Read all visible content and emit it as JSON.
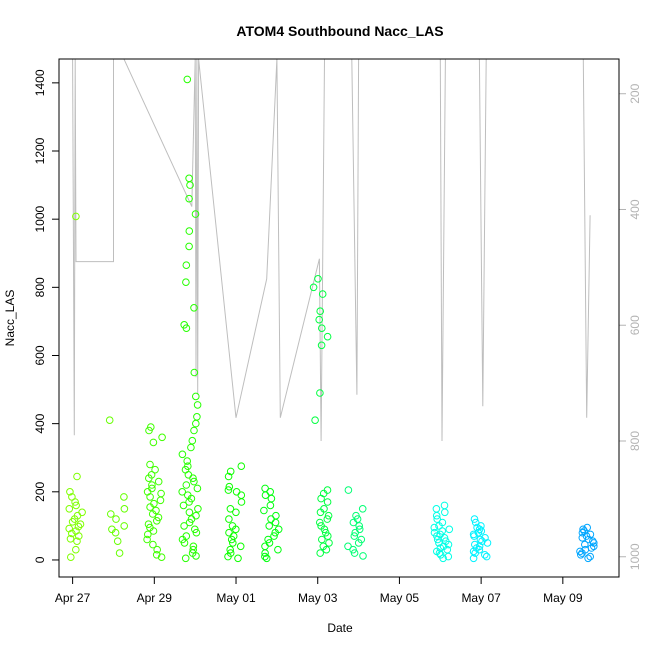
{
  "chart_data": {
    "type": "scatter",
    "title": "ATOM4 Southbound Nacc_LAS",
    "xlabel": "Date",
    "ylabel": "Nacc_LAS",
    "xlim": [
      "2016-04-26T16:00",
      "2016-05-10T09:00"
    ],
    "ylim": [
      -50,
      1470
    ],
    "x_ticks": [
      {
        "date": "2016-04-27",
        "label": "Apr 27"
      },
      {
        "date": "2016-04-29",
        "label": "Apr 29"
      },
      {
        "date": "2016-05-01",
        "label": "May 01"
      },
      {
        "date": "2016-05-03",
        "label": "May 03"
      },
      {
        "date": "2016-05-05",
        "label": "May 05"
      },
      {
        "date": "2016-05-07",
        "label": "May 07"
      },
      {
        "date": "2016-05-09",
        "label": "May 09"
      }
    ],
    "y_ticks": [
      0,
      200,
      400,
      600,
      800,
      1000,
      1200,
      1400
    ],
    "secondary_axis": {
      "side": "right",
      "color": "#b3b3b3",
      "reversed": true,
      "ylim": [
        1035,
        140
      ],
      "ticks": [
        200,
        400,
        600,
        800,
        1000
      ]
    },
    "point_style": "open-circle",
    "color_scale": "green to cyan to blue by time",
    "series": [
      {
        "time": "2016-04-27T02:00",
        "color": "#7fff00",
        "values": [
          1008,
          245,
          200,
          185,
          170,
          160,
          150,
          140,
          130,
          120,
          112,
          105,
          98,
          92,
          85,
          78,
          70,
          62,
          55,
          30,
          8
        ]
      },
      {
        "time": "2016-04-28T02:00",
        "color": "#66ff00",
        "values": [
          410,
          185,
          150,
          135,
          120,
          100,
          90,
          80,
          55,
          20
        ]
      },
      {
        "time": "2016-04-29T00:00",
        "color": "#40ff00",
        "values": [
          390,
          380,
          360,
          345,
          280,
          265,
          250,
          240,
          230,
          220,
          210,
          200,
          195,
          185,
          175,
          165,
          155,
          145,
          135,
          125,
          115,
          105,
          95,
          85,
          75,
          60,
          45,
          30,
          15,
          8
        ]
      },
      {
        "time": "2016-04-29T21:00",
        "color": "#26ff00",
        "values": [
          1410,
          1120,
          1100,
          1060,
          1015,
          965,
          920,
          865,
          815,
          740,
          690,
          680,
          550,
          480,
          455,
          420,
          400,
          380,
          350,
          330,
          310,
          290,
          275,
          265,
          250,
          240,
          230,
          220,
          210,
          200,
          190,
          180,
          170,
          160,
          150,
          140,
          130,
          120,
          110,
          100,
          90,
          80,
          70,
          60,
          50,
          40,
          30,
          20,
          12,
          5
        ]
      },
      {
        "time": "2016-05-01T00:00",
        "color": "#0dff00",
        "values": [
          275,
          260,
          245,
          215,
          205,
          200,
          190,
          170,
          150,
          140,
          120,
          100,
          90,
          80,
          70,
          60,
          50,
          40,
          30,
          20,
          10,
          5
        ]
      },
      {
        "time": "2016-05-01T21:00",
        "color": "#00ff0d",
        "values": [
          210,
          200,
          190,
          180,
          160,
          145,
          130,
          120,
          110,
          100,
          90,
          80,
          70,
          60,
          50,
          40,
          30,
          20,
          10,
          5
        ]
      },
      {
        "time": "2016-05-03T02:00",
        "color": "#00ff40",
        "values": [
          825,
          800,
          780,
          730,
          705,
          680,
          655,
          630,
          490,
          410,
          205,
          195,
          180,
          170,
          150,
          140,
          130,
          120,
          110,
          100,
          90,
          80,
          70,
          60,
          50,
          40,
          30,
          20
        ]
      },
      {
        "time": "2016-05-03T22:00",
        "color": "#00ff73",
        "values": [
          205,
          150,
          130,
          120,
          110,
          100,
          90,
          80,
          70,
          60,
          50,
          40,
          30,
          20,
          12
        ]
      },
      {
        "time": "2016-05-06T01:00",
        "color": "#00ffe6",
        "values": [
          160,
          150,
          140,
          130,
          120,
          110,
          100,
          95,
          90,
          85,
          80,
          75,
          70,
          65,
          60,
          55,
          50,
          45,
          40,
          35,
          30,
          25,
          20,
          15,
          10,
          5
        ]
      },
      {
        "time": "2016-05-07T00:00",
        "color": "#00f2ff",
        "values": [
          120,
          110,
          100,
          95,
          90,
          85,
          80,
          75,
          70,
          65,
          60,
          55,
          50,
          45,
          40,
          35,
          30,
          25,
          20,
          15,
          10,
          5
        ]
      },
      {
        "time": "2016-05-09T14:00",
        "color": "#00a6ff",
        "values": [
          95,
          90,
          85,
          80,
          75,
          70,
          65,
          60,
          55,
          50,
          45,
          40,
          35,
          30,
          25,
          20,
          15,
          10,
          5
        ]
      }
    ],
    "altitude_trace": {
      "color": "#bebebe",
      "points": [
        [
          "2016-04-27T00:00",
          140
        ],
        [
          "2016-04-27T01:00",
          790
        ],
        [
          "2016-04-27T01:30",
          140
        ],
        [
          "2016-04-27T02:00",
          490
        ],
        [
          "2016-04-28T00:00",
          490
        ],
        [
          "2016-04-28T00:00",
          140
        ],
        [
          "2016-04-28T03:00",
          120
        ],
        [
          "2016-04-29T22:00",
          395
        ],
        [
          "2016-04-30T00:00",
          140
        ],
        [
          "2016-04-30T00:30",
          690
        ],
        [
          "2016-04-30T01:00",
          140
        ],
        [
          "2016-04-30T01:30",
          720
        ],
        [
          "2016-04-30T02:00",
          140
        ],
        [
          "2016-05-01T00:00",
          760
        ],
        [
          "2016-05-01T03:00",
          720
        ],
        [
          "2016-05-01T18:00",
          520
        ],
        [
          "2016-05-02T00:00",
          140
        ],
        [
          "2016-05-02T02:00",
          760
        ],
        [
          "2016-05-03T01:00",
          485
        ],
        [
          "2016-05-03T02:00",
          800
        ],
        [
          "2016-05-03T04:00",
          140
        ],
        [
          "2016-05-03T20:00",
          140
        ],
        [
          "2016-05-03T23:00",
          720
        ],
        [
          "2016-05-04T00:00",
          140
        ],
        [
          "2016-05-06T00:00",
          140
        ],
        [
          "2016-05-06T01:00",
          800
        ],
        [
          "2016-05-06T03:00",
          140
        ],
        [
          "2016-05-06T23:00",
          140
        ],
        [
          "2016-05-07T01:00",
          740
        ],
        [
          "2016-05-07T03:00",
          140
        ],
        [
          "2016-05-09T12:00",
          140
        ],
        [
          "2016-05-09T14:00",
          760
        ],
        [
          "2016-05-09T16:00",
          410
        ]
      ]
    }
  }
}
